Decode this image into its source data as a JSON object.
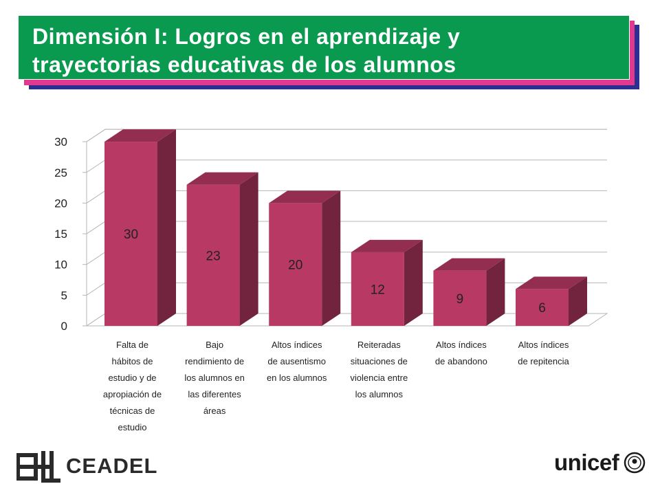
{
  "header": {
    "title_line1": "Dimensión I: Logros en el aprendizaje y",
    "title_line2": "trayectorias educativas de los alumnos"
  },
  "chart_data": {
    "type": "bar",
    "style": "3d-column",
    "title": "",
    "xlabel": "",
    "ylabel": "",
    "ylim": [
      0,
      30
    ],
    "ytick_step": 5,
    "grid": true,
    "legend": "none",
    "bar_color": "#b83a64",
    "categories": [
      [
        "Falta de",
        "hábitos de",
        "estudio y de",
        "apropiación de",
        "técnicas de",
        "estudio"
      ],
      [
        "Bajo",
        "rendimiento de",
        "los alumnos en",
        "las diferentes",
        "áreas"
      ],
      [
        "Altos índices",
        "de ausentismo",
        "en los alumnos"
      ],
      [
        "Reiteradas",
        "situaciones de",
        "violencia entre",
        "los alumnos"
      ],
      [
        "Altos índices",
        "de abandono"
      ],
      [
        "Altos índices",
        "de repitencia"
      ]
    ],
    "values": [
      30,
      23,
      20,
      12,
      9,
      6
    ]
  },
  "footer": {
    "left_logo_text": "CEADEL",
    "right_logo_text": "unicef"
  }
}
